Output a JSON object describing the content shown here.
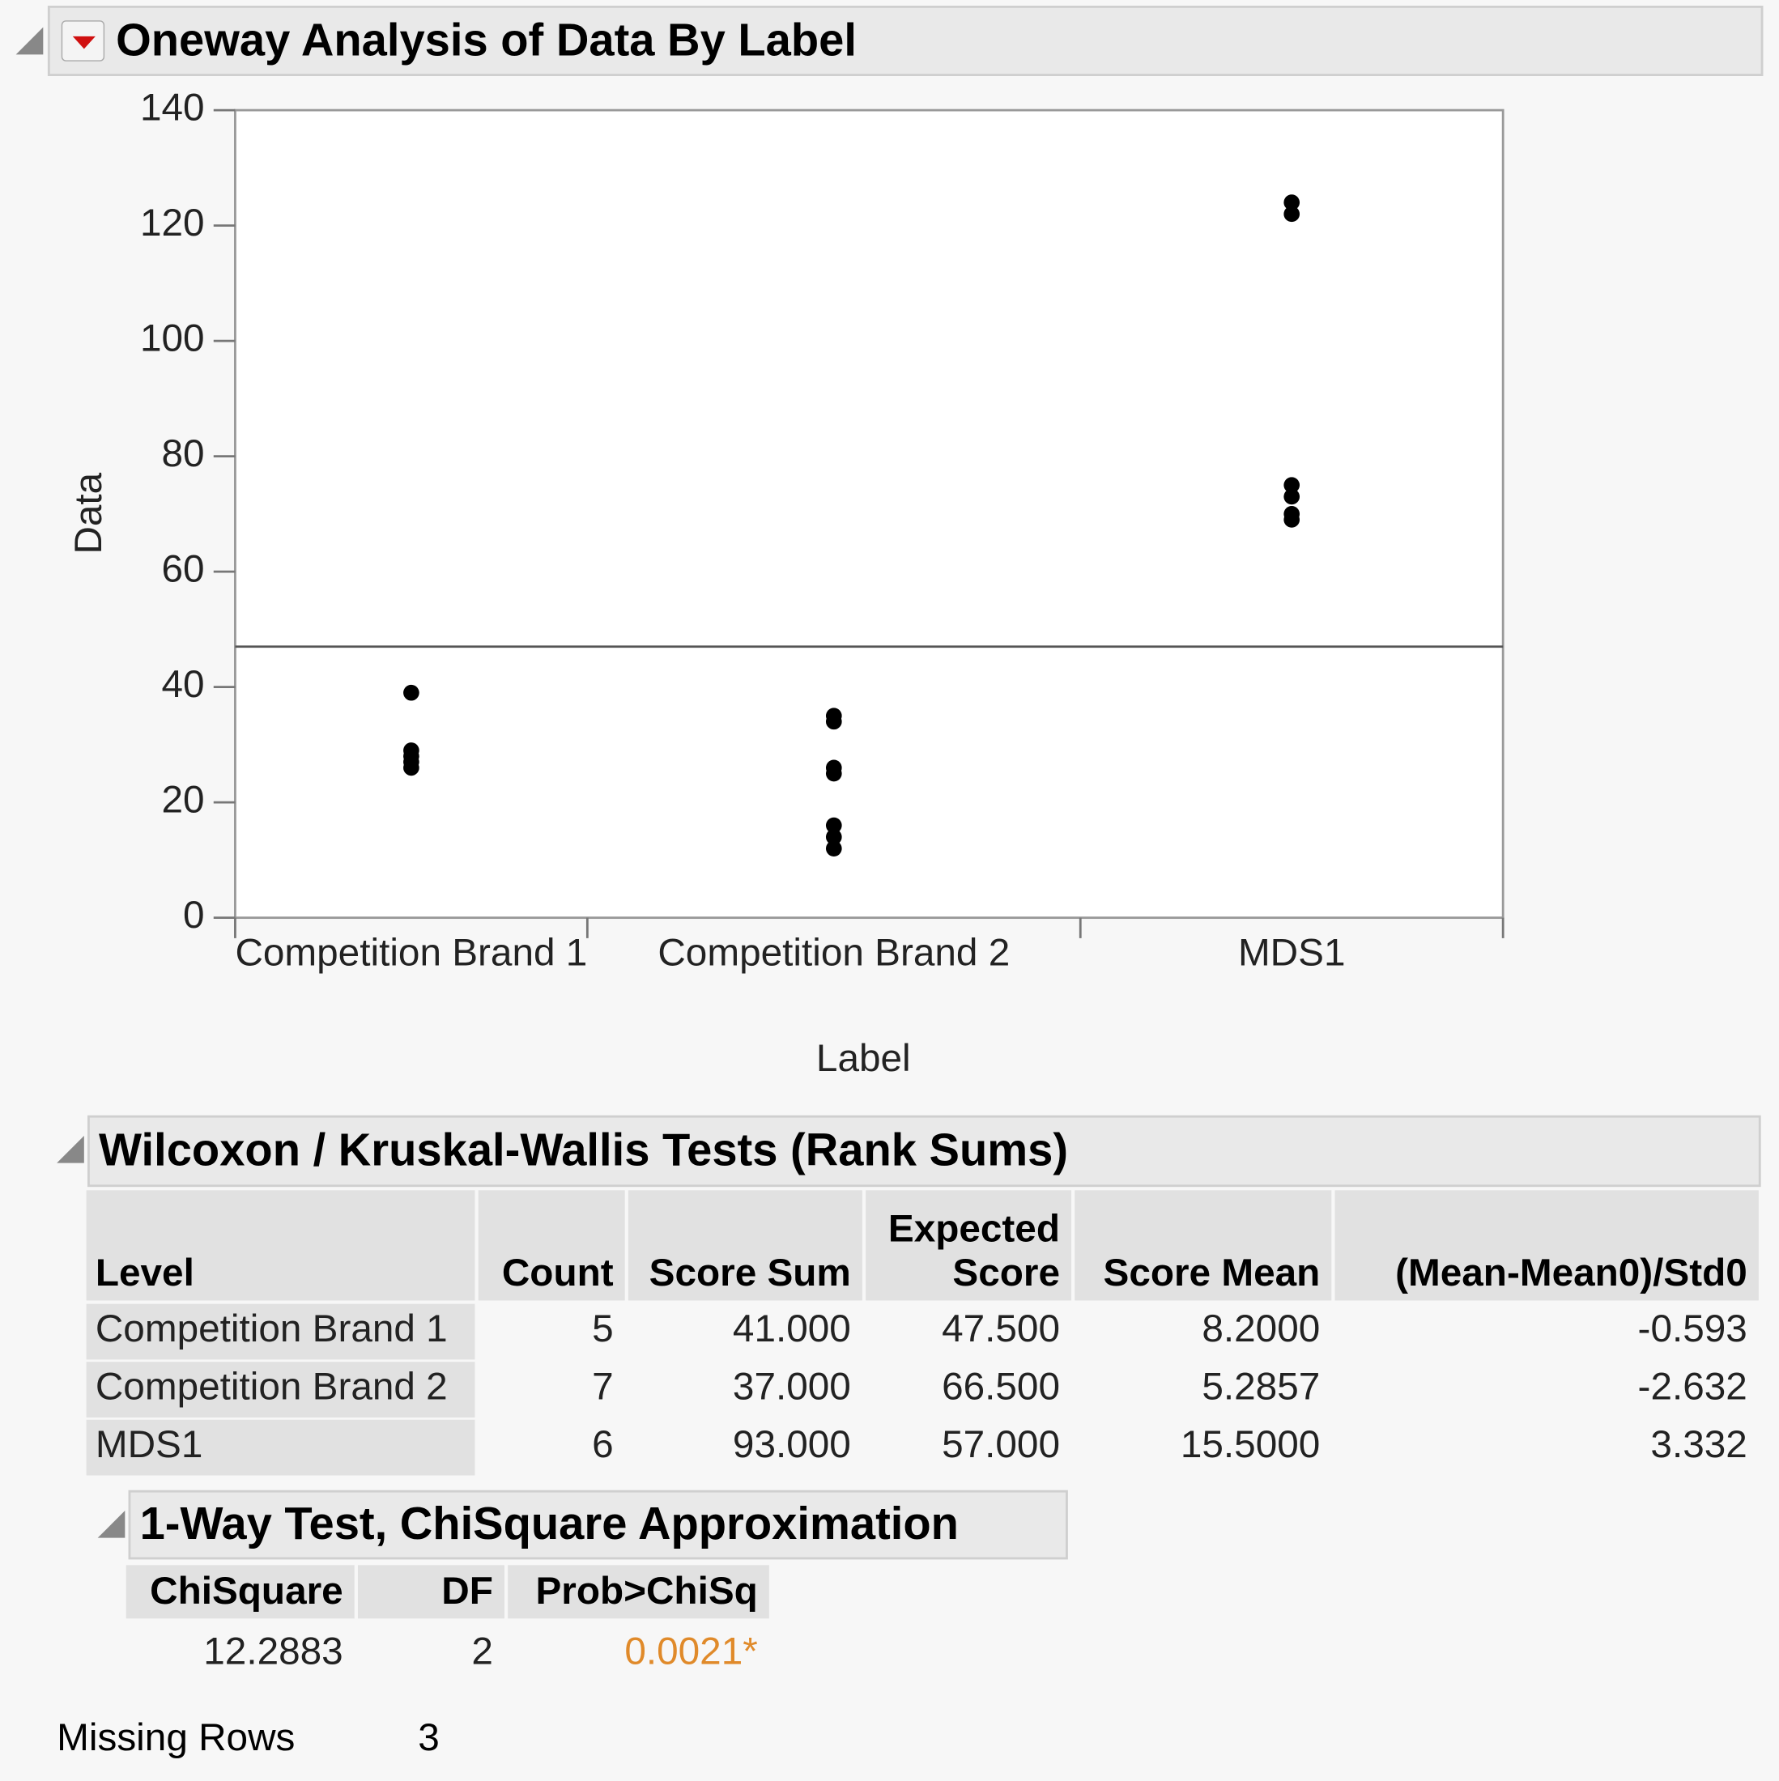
{
  "header": {
    "title": "Oneway Analysis of Data By Label"
  },
  "chart_data": {
    "type": "scatter",
    "x_label": "Label",
    "y_label": "Data",
    "categories": [
      "Competition Brand 1",
      "Competition Brand 2",
      "MDS1"
    ],
    "values": [
      [
        39,
        29,
        28,
        27,
        26
      ],
      [
        35,
        34,
        26,
        25,
        16,
        14,
        12
      ],
      [
        124,
        122,
        75,
        73,
        70,
        69
      ]
    ],
    "grand_mean": 47,
    "color": "#000000",
    "ylim": [
      0,
      140
    ],
    "yticks": [
      0,
      20,
      40,
      60,
      80,
      100,
      120,
      140
    ]
  },
  "wilcoxon": {
    "title": "Wilcoxon / Kruskal-Wallis Tests (Rank Sums)",
    "columns": [
      [
        "Level"
      ],
      [
        "Count"
      ],
      [
        "Score Sum"
      ],
      [
        "Expected",
        "Score"
      ],
      [
        "Score Mean"
      ],
      [
        "(Mean-Mean0)/Std0"
      ]
    ],
    "rows": [
      [
        "Competition Brand 1",
        "5",
        "41.000",
        "47.500",
        "8.2000",
        "-0.593"
      ],
      [
        "Competition Brand 2",
        "7",
        "37.000",
        "66.500",
        "5.2857",
        "-2.632"
      ],
      [
        "MDS1",
        "6",
        "93.000",
        "57.000",
        "15.5000",
        "3.332"
      ]
    ]
  },
  "chisquare": {
    "title": "1-Way Test, ChiSquare Approximation",
    "columns": [
      "ChiSquare",
      "DF",
      "Prob>ChiSq"
    ],
    "rows": [
      [
        "12.2883",
        "2",
        "0.0021*"
      ]
    ],
    "significant_color": "#e08a2a"
  },
  "missing": {
    "label": "Missing Rows",
    "value": "3"
  }
}
